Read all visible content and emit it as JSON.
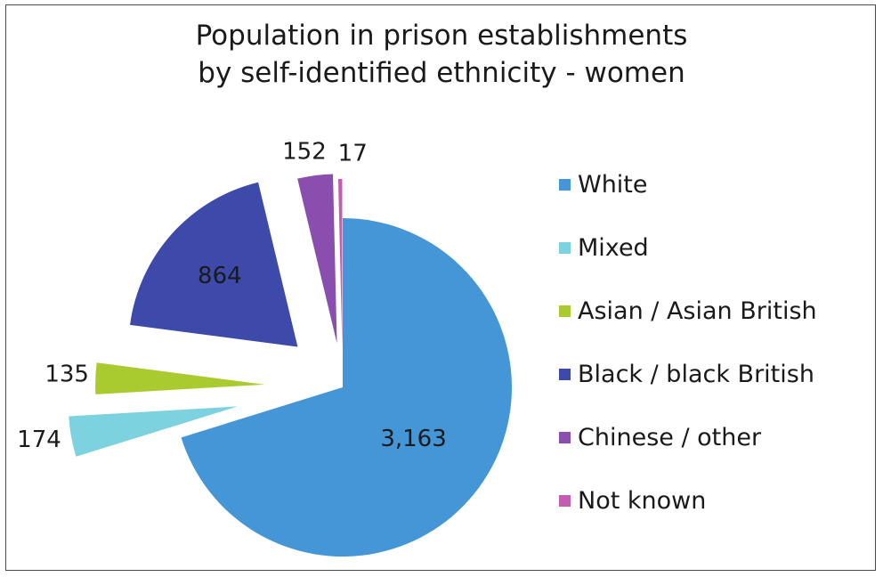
{
  "chart_data": {
    "type": "pie",
    "style": "exploded",
    "title_lines": [
      "Population in prison establishments",
      "by self-identified ethnicity - women"
    ],
    "slices": [
      {
        "label": "White",
        "value": 3163,
        "value_label": "3,163",
        "color": "#4596d6"
      },
      {
        "label": "Mixed",
        "value": 174,
        "value_label": "174",
        "color": "#7dd2e0"
      },
      {
        "label": "Asian / Asian British",
        "value": 135,
        "value_label": "135",
        "color": "#a9cb2f"
      },
      {
        "label": "Black / black British",
        "value": 864,
        "value_label": "864",
        "color": "#3d4aa9"
      },
      {
        "label": "Chinese / other",
        "value": 152,
        "value_label": "152",
        "color": "#8a4fae"
      },
      {
        "label": "Not known",
        "value": 17,
        "value_label": "17",
        "color": "#c45cb1"
      }
    ],
    "legend_position": "right"
  }
}
